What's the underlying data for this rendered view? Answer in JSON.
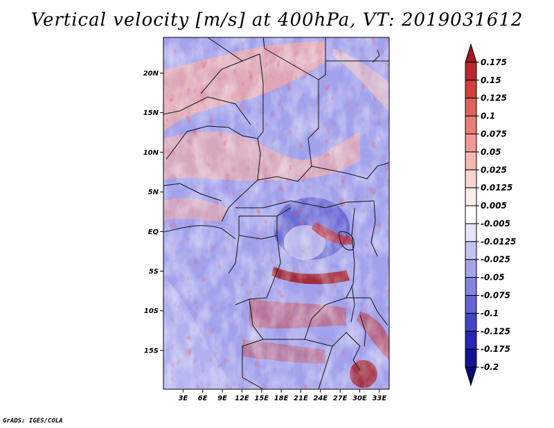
{
  "title": "Vertical velocity [m/s] at 400hPa, VT: 2019031612",
  "credit": "GrADS: IGES/COLA",
  "map": {
    "lat_labels": [
      "20N",
      "15N",
      "10N",
      "5N",
      "EQ",
      "5S",
      "10S",
      "15S"
    ],
    "lat_values": [
      20,
      15,
      10,
      5,
      0,
      -5,
      -10,
      -15
    ],
    "lon_labels": [
      "3E",
      "6E",
      "9E",
      "12E",
      "15E",
      "18E",
      "21E",
      "24E",
      "27E",
      "30E",
      "33E"
    ],
    "lon_values": [
      3,
      6,
      9,
      12,
      15,
      18,
      21,
      24,
      27,
      30,
      33
    ],
    "lat_range": [
      -19.9,
      24.5
    ],
    "lon_range": [
      0,
      34.5
    ]
  },
  "colorbar": {
    "labels": [
      "0.175",
      "0.15",
      "0.125",
      "0.1",
      "0.075",
      "0.05",
      "0.025",
      "0.0125",
      "0.005",
      "-0.005",
      "-0.0125",
      "-0.025",
      "-0.05",
      "-0.075",
      "-0.1",
      "-0.125",
      "-0.175",
      "-0.2"
    ],
    "colors": [
      "#a01820",
      "#b82830",
      "#d0403c",
      "#e0605a",
      "#e87c76",
      "#f09a94",
      "#f6b8b2",
      "#fad6d2",
      "#fdeeec",
      "#ffffff",
      "#e4e4fa",
      "#c4c4f2",
      "#a4a4ea",
      "#8484e0",
      "#6464d6",
      "#4444c6",
      "#2828b0",
      "#141496",
      "#0a0a78"
    ]
  }
}
